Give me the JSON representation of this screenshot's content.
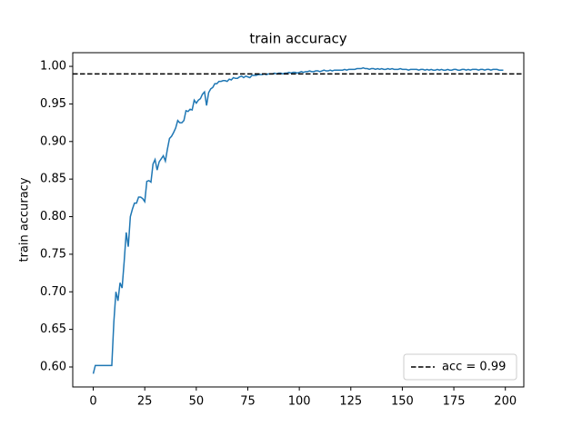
{
  "chart_data": {
    "type": "line",
    "title": "train accuracy",
    "y_label": "train accuracy",
    "x": [
      0,
      1,
      2,
      3,
      4,
      5,
      6,
      7,
      8,
      9,
      10,
      11,
      12,
      13,
      14,
      15,
      16,
      17,
      18,
      19,
      20,
      21,
      22,
      23,
      24,
      25,
      26,
      27,
      28,
      29,
      30,
      31,
      32,
      33,
      34,
      35,
      36,
      37,
      38,
      39,
      40,
      41,
      42,
      43,
      44,
      45,
      46,
      47,
      48,
      49,
      50,
      51,
      52,
      53,
      54,
      55,
      56,
      57,
      58,
      59,
      60,
      61,
      62,
      63,
      64,
      65,
      66,
      67,
      68,
      69,
      70,
      71,
      72,
      73,
      74,
      75,
      76,
      77,
      78,
      79,
      80,
      81,
      82,
      83,
      84,
      85,
      86,
      87,
      88,
      89,
      90,
      91,
      92,
      93,
      94,
      95,
      96,
      97,
      98,
      99,
      100,
      101,
      102,
      103,
      104,
      105,
      106,
      107,
      108,
      109,
      110,
      111,
      112,
      113,
      114,
      115,
      116,
      117,
      118,
      119,
      120,
      121,
      122,
      123,
      124,
      125,
      126,
      127,
      128,
      129,
      130,
      131,
      132,
      133,
      134,
      135,
      136,
      137,
      138,
      139,
      140,
      141,
      142,
      143,
      144,
      145,
      146,
      147,
      148,
      149,
      150,
      151,
      152,
      153,
      154,
      155,
      156,
      157,
      158,
      159,
      160,
      161,
      162,
      163,
      164,
      165,
      166,
      167,
      168,
      169,
      170,
      171,
      172,
      173,
      174,
      175,
      176,
      177,
      178,
      179,
      180,
      181,
      182,
      183,
      184,
      185,
      186,
      187,
      188,
      189,
      190,
      191,
      192,
      193,
      194,
      195,
      196,
      197,
      198,
      199
    ],
    "series": [
      {
        "name": "train accuracy",
        "color": "#1f77b4",
        "values": [
          0.591,
          0.602,
          0.602,
          0.602,
          0.602,
          0.602,
          0.602,
          0.602,
          0.602,
          0.602,
          0.66,
          0.7,
          0.688,
          0.712,
          0.705,
          0.74,
          0.779,
          0.76,
          0.8,
          0.81,
          0.818,
          0.818,
          0.826,
          0.826,
          0.824,
          0.82,
          0.847,
          0.848,
          0.846,
          0.87,
          0.876,
          0.862,
          0.873,
          0.877,
          0.881,
          0.874,
          0.89,
          0.904,
          0.907,
          0.912,
          0.918,
          0.928,
          0.925,
          0.925,
          0.928,
          0.941,
          0.94,
          0.943,
          0.942,
          0.955,
          0.951,
          0.955,
          0.957,
          0.963,
          0.966,
          0.948,
          0.965,
          0.97,
          0.972,
          0.977,
          0.977,
          0.98,
          0.98,
          0.981,
          0.981,
          0.98,
          0.983,
          0.982,
          0.985,
          0.984,
          0.984,
          0.986,
          0.987,
          0.985,
          0.987,
          0.986,
          0.985,
          0.988,
          0.988,
          0.988,
          0.989,
          0.989,
          0.989,
          0.99,
          0.989,
          0.99,
          0.99,
          0.99,
          0.991,
          0.99,
          0.991,
          0.991,
          0.99,
          0.991,
          0.991,
          0.992,
          0.991,
          0.992,
          0.992,
          0.991,
          0.992,
          0.993,
          0.992,
          0.993,
          0.993,
          0.994,
          0.993,
          0.993,
          0.994,
          0.994,
          0.993,
          0.994,
          0.995,
          0.994,
          0.994,
          0.995,
          0.994,
          0.995,
          0.995,
          0.995,
          0.995,
          0.995,
          0.996,
          0.995,
          0.996,
          0.996,
          0.996,
          0.996,
          0.997,
          0.997,
          0.997,
          0.998,
          0.997,
          0.997,
          0.996,
          0.997,
          0.997,
          0.996,
          0.997,
          0.996,
          0.997,
          0.996,
          0.996,
          0.997,
          0.996,
          0.997,
          0.996,
          0.996,
          0.996,
          0.997,
          0.996,
          0.996,
          0.996,
          0.995,
          0.996,
          0.996,
          0.996,
          0.996,
          0.995,
          0.996,
          0.996,
          0.995,
          0.996,
          0.995,
          0.996,
          0.995,
          0.995,
          0.996,
          0.995,
          0.996,
          0.995,
          0.995,
          0.996,
          0.995,
          0.995,
          0.996,
          0.996,
          0.995,
          0.995,
          0.996,
          0.996,
          0.995,
          0.996,
          0.995,
          0.996,
          0.996,
          0.996,
          0.995,
          0.996,
          0.996,
          0.995,
          0.996,
          0.996,
          0.995,
          0.996,
          0.996,
          0.996,
          0.995,
          0.995,
          0.995
        ]
      }
    ],
    "reference_lines": [
      {
        "value": 0.99,
        "label": "acc = 0.99",
        "color": "#000000",
        "dashed": true
      }
    ],
    "xlim": [
      -9.95,
      208.95
    ],
    "ylim": [
      0.5734,
      1.0182
    ],
    "xticks": [
      0,
      25,
      50,
      75,
      100,
      125,
      150,
      175,
      200
    ],
    "yticks": [
      {
        "value": 0.6,
        "label": "0.60"
      },
      {
        "value": 0.65,
        "label": "0.65"
      },
      {
        "value": 0.7,
        "label": "0.70"
      },
      {
        "value": 0.75,
        "label": "0.75"
      },
      {
        "value": 0.8,
        "label": "0.80"
      },
      {
        "value": 0.85,
        "label": "0.85"
      },
      {
        "value": 0.9,
        "label": "0.90"
      },
      {
        "value": 0.95,
        "label": "0.95"
      },
      {
        "value": 1.0,
        "label": "1.00"
      }
    ],
    "legend_position": "lower right",
    "grid": false
  }
}
